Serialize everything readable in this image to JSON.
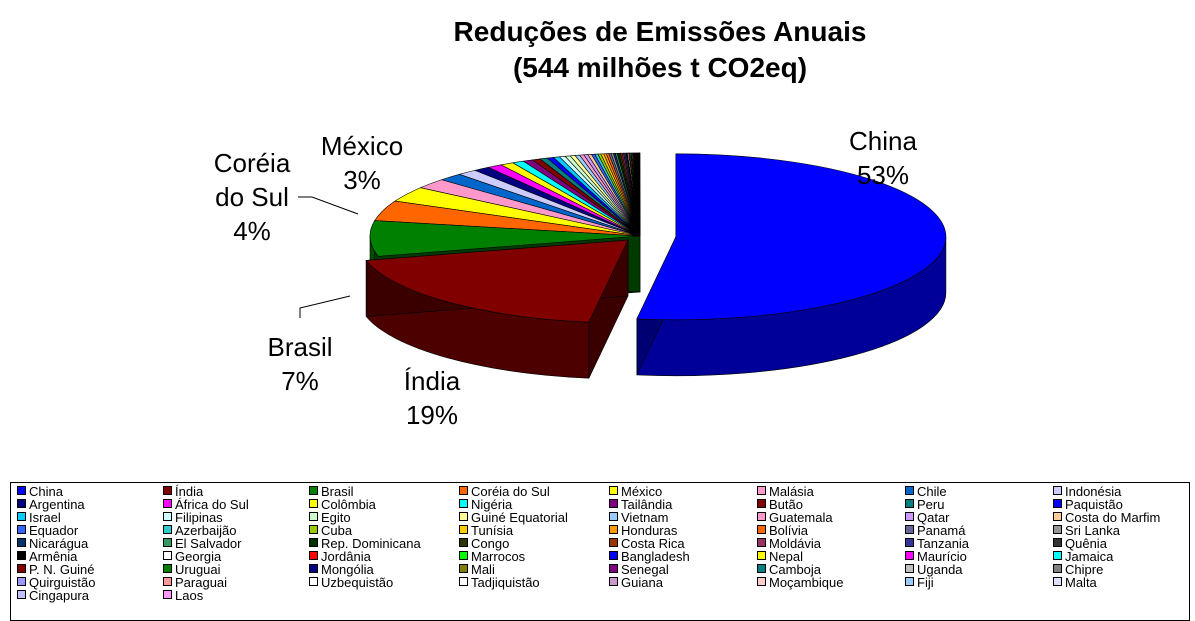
{
  "chart_data": {
    "type": "pie",
    "title_line1": "Reduções de Emissões Anuais",
    "title_line2": "(544 milhões t CO2eq)",
    "labeled_slices": [
      {
        "category": "China",
        "line1": "China",
        "line2": "",
        "percent": "53%"
      },
      {
        "category": "Índia",
        "line1": "Índia",
        "line2": "",
        "percent": "19%"
      },
      {
        "category": "Brasil",
        "line1": "Brasil",
        "line2": "",
        "percent": "7%"
      },
      {
        "category": "Coréia do Sul",
        "line1": "Coréia",
        "line2": "do Sul",
        "percent": "4%"
      },
      {
        "category": "México",
        "line1": "México",
        "line2": "",
        "percent": "3%"
      }
    ],
    "legend_placement": "bottom",
    "categories": [
      "China",
      "Índia",
      "Brasil",
      "Coréia do Sul",
      "México",
      "Malásia",
      "Chile",
      "Indonésia",
      "Argentina",
      "África do Sul",
      "Colômbia",
      "Nigéria",
      "Tailândia",
      "Butão",
      "Peru",
      "Paquistão",
      "Israel",
      "Filipinas",
      "Egito",
      "Guiné Equatorial",
      "Vietnam",
      "Guatemala",
      "Qatar",
      "Costa do Marfim",
      "Equador",
      "Azerbaijão",
      "Cuba",
      "Tunísia",
      "Honduras",
      "Bolívia",
      "Panamá",
      "Sri Lanka",
      "Nicarágua",
      "El Salvador",
      "Rep. Dominicana",
      "Congo",
      "Costa Rica",
      "Moldávia",
      "Tanzania",
      "Quênia",
      "Armênia",
      "Georgia",
      "Jordânia",
      "Marrocos",
      "Bangladesh",
      "Nepal",
      "Maurício",
      "Jamaica",
      "P. N. Guiné",
      "Uruguai",
      "Mongólia",
      "Mali",
      "Senegal",
      "Camboja",
      "Uganda",
      "Chipre",
      "Quirguistão",
      "Paraguai",
      "Uzbequistão",
      "Tadjiquistão",
      "Guiana",
      "Moçambique",
      "Fiji",
      "Malta",
      "Cingapura",
      "Laos"
    ],
    "values": [
      53,
      19,
      7,
      4,
      3,
      2,
      1.5,
      1.2,
      1,
      0.9,
      0.8,
      0.7,
      0.6,
      0.5,
      0.45,
      0.4,
      0.38,
      0.35,
      0.32,
      0.3,
      0.28,
      0.26,
      0.24,
      0.22,
      0.2,
      0.19,
      0.18,
      0.17,
      0.16,
      0.15,
      0.14,
      0.13,
      0.12,
      0.11,
      0.1,
      0.1,
      0.09,
      0.09,
      0.08,
      0.08,
      0.07,
      0.07,
      0.06,
      0.06,
      0.05,
      0.05,
      0.05,
      0.04,
      0.04,
      0.04,
      0.03,
      0.03,
      0.03,
      0.03,
      0.02,
      0.02,
      0.02,
      0.02,
      0.02,
      0.02,
      0.01,
      0.01,
      0.01,
      0.01,
      0.01,
      0.01
    ],
    "colors": [
      "#0000FF",
      "#800000",
      "#008000",
      "#FF6600",
      "#FFFF00",
      "#FF99CC",
      "#0066CC",
      "#CCCCFF",
      "#000080",
      "#FF00FF",
      "#FFFF00",
      "#00FFFF",
      "#800080",
      "#800000",
      "#008080",
      "#0000FF",
      "#00CCFF",
      "#CCFFFF",
      "#CCFFCC",
      "#FFFF99",
      "#99CCFF",
      "#FF99CC",
      "#CC99FF",
      "#FFCC99",
      "#3366FF",
      "#33CCCC",
      "#99CC00",
      "#FFCC00",
      "#FF9900",
      "#FF6600",
      "#666699",
      "#969696",
      "#003366",
      "#339966",
      "#003300",
      "#333300",
      "#993300",
      "#993366",
      "#333399",
      "#333333",
      "#000000",
      "#FFFFFF",
      "#FF0000",
      "#00FF00",
      "#0000FF",
      "#FFFF00",
      "#FF00FF",
      "#00FFFF",
      "#800000",
      "#008000",
      "#000080",
      "#808000",
      "#800080",
      "#008080",
      "#C0C0C0",
      "#808080",
      "#9999FF",
      "#FF9999",
      "#FFFFFF",
      "#FFFFFF",
      "#CC99CC",
      "#FFCCCC",
      "#99CCFF",
      "#E0E0FF",
      "#C0C0FF",
      "#FF99FF"
    ]
  }
}
